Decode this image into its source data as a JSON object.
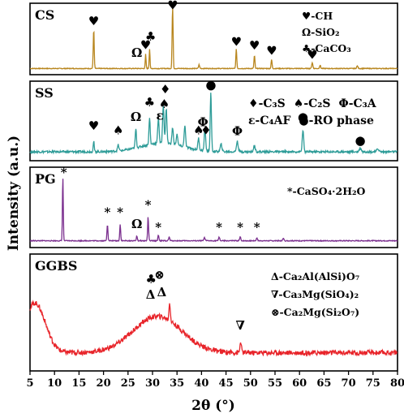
{
  "chart_data": {
    "type": "line",
    "xlabel": "2θ (°)",
    "ylabel": "Intensity (a.u.)",
    "xlim": [
      5,
      80
    ],
    "xticks": [
      5,
      10,
      15,
      20,
      25,
      30,
      35,
      40,
      45,
      50,
      55,
      60,
      65,
      70,
      75,
      80
    ],
    "panels": [
      {
        "name": "CS",
        "color": "#B8861E",
        "baseline": 0.07,
        "noise": 0.012,
        "background": [],
        "peaks": [
          {
            "x": 18.0,
            "y": 0.6,
            "w": 0.14
          },
          {
            "x": 28.6,
            "y": 0.22,
            "w": 0.12
          },
          {
            "x": 29.4,
            "y": 0.3,
            "w": 0.12
          },
          {
            "x": 34.1,
            "y": 0.95,
            "w": 0.14
          },
          {
            "x": 39.5,
            "y": 0.06,
            "w": 0.15
          },
          {
            "x": 47.1,
            "y": 0.3,
            "w": 0.14
          },
          {
            "x": 50.8,
            "y": 0.2,
            "w": 0.14
          },
          {
            "x": 54.3,
            "y": 0.14,
            "w": 0.14
          },
          {
            "x": 62.6,
            "y": 0.09,
            "w": 0.16
          },
          {
            "x": 64.2,
            "y": 0.05,
            "w": 0.16
          },
          {
            "x": 71.8,
            "y": 0.04,
            "w": 0.18
          }
        ],
        "markers": [
          {
            "x": 18.0,
            "y": 0.74,
            "s": "♥"
          },
          {
            "x": 26.8,
            "y": 0.25,
            "s": "Ω"
          },
          {
            "x": 28.6,
            "y": 0.37,
            "s": "♥"
          },
          {
            "x": 29.6,
            "y": 0.5,
            "s": "♣"
          },
          {
            "x": 34.1,
            "y": 0.98,
            "s": "♥"
          },
          {
            "x": 47.1,
            "y": 0.42,
            "s": "♥"
          },
          {
            "x": 50.8,
            "y": 0.36,
            "s": "♥"
          },
          {
            "x": 54.3,
            "y": 0.28,
            "s": "♥"
          },
          {
            "x": 62.6,
            "y": 0.22,
            "s": "♥"
          }
        ],
        "legend": [
          {
            "s": "♥",
            "text": "-CH"
          },
          {
            "s": "",
            "text": "Ω-SiO₂"
          },
          {
            "s": "♣",
            "text": "-CaCO₃"
          }
        ]
      },
      {
        "name": "SS",
        "color": "#2E9C98",
        "baseline": 0.1,
        "noise": 0.03,
        "background": [
          {
            "x": 32,
            "y": 0.12,
            "w": 6
          }
        ],
        "peaks": [
          {
            "x": 18.0,
            "y": 0.14,
            "w": 0.15
          },
          {
            "x": 23.0,
            "y": 0.08,
            "w": 0.2
          },
          {
            "x": 26.6,
            "y": 0.26,
            "w": 0.18
          },
          {
            "x": 29.4,
            "y": 0.36,
            "w": 0.18
          },
          {
            "x": 31.2,
            "y": 0.34,
            "w": 0.2
          },
          {
            "x": 32.2,
            "y": 0.52,
            "w": 0.2
          },
          {
            "x": 32.8,
            "y": 0.48,
            "w": 0.2
          },
          {
            "x": 34.1,
            "y": 0.22,
            "w": 0.2
          },
          {
            "x": 35.0,
            "y": 0.15,
            "w": 0.2
          },
          {
            "x": 36.6,
            "y": 0.3,
            "w": 0.2
          },
          {
            "x": 39.4,
            "y": 0.16,
            "w": 0.2
          },
          {
            "x": 40.7,
            "y": 0.3,
            "w": 0.2
          },
          {
            "x": 41.9,
            "y": 0.8,
            "w": 0.18
          },
          {
            "x": 44.0,
            "y": 0.1,
            "w": 0.25
          },
          {
            "x": 47.3,
            "y": 0.14,
            "w": 0.25
          },
          {
            "x": 50.8,
            "y": 0.08,
            "w": 0.25
          },
          {
            "x": 60.7,
            "y": 0.3,
            "w": 0.2
          },
          {
            "x": 72.4,
            "y": 0.05,
            "w": 0.3
          },
          {
            "x": 76.0,
            "y": 0.04,
            "w": 0.3
          }
        ],
        "markers": [
          {
            "x": 18.0,
            "y": 0.4,
            "s": "♥"
          },
          {
            "x": 23.0,
            "y": 0.34,
            "s": "♠"
          },
          {
            "x": 26.6,
            "y": 0.52,
            "s": "Ω"
          },
          {
            "x": 29.4,
            "y": 0.72,
            "s": "♣"
          },
          {
            "x": 31.5,
            "y": 0.54,
            "s": "ε"
          },
          {
            "x": 32.4,
            "y": 0.7,
            "s": "♠"
          },
          {
            "x": 32.6,
            "y": 0.9,
            "s": "♦"
          },
          {
            "x": 39.4,
            "y": 0.34,
            "s": "♠"
          },
          {
            "x": 40.3,
            "y": 0.45,
            "s": "Φ"
          },
          {
            "x": 40.9,
            "y": 0.34,
            "s": "♦"
          },
          {
            "x": 41.9,
            "y": 0.96,
            "s": "●"
          },
          {
            "x": 47.3,
            "y": 0.33,
            "s": "Φ"
          },
          {
            "x": 60.7,
            "y": 0.52,
            "s": "●"
          },
          {
            "x": 72.4,
            "y": 0.2,
            "s": "●"
          }
        ],
        "legend": [
          {
            "s": "♦",
            "text": "-C₃S"
          },
          {
            "s": "♠",
            "text": "-C₂S"
          },
          {
            "s": "",
            "text": "Φ-C₃A"
          },
          {
            "s": "",
            "text": "ε-C₄AF"
          },
          {
            "s": "●",
            "text": "-RO phase"
          }
        ]
      },
      {
        "name": "PG",
        "color": "#7A2E8E",
        "baseline": 0.07,
        "noise": 0.012,
        "background": [],
        "peaks": [
          {
            "x": 11.7,
            "y": 0.86,
            "w": 0.12
          },
          {
            "x": 20.8,
            "y": 0.22,
            "w": 0.14
          },
          {
            "x": 23.4,
            "y": 0.22,
            "w": 0.14
          },
          {
            "x": 26.8,
            "y": 0.06,
            "w": 0.15
          },
          {
            "x": 29.1,
            "y": 0.32,
            "w": 0.14
          },
          {
            "x": 31.2,
            "y": 0.08,
            "w": 0.14
          },
          {
            "x": 33.4,
            "y": 0.05,
            "w": 0.16
          },
          {
            "x": 40.6,
            "y": 0.04,
            "w": 0.18
          },
          {
            "x": 43.6,
            "y": 0.05,
            "w": 0.16
          },
          {
            "x": 47.9,
            "y": 0.05,
            "w": 0.16
          },
          {
            "x": 51.3,
            "y": 0.04,
            "w": 0.16
          },
          {
            "x": 56.7,
            "y": 0.03,
            "w": 0.2
          }
        ],
        "markers": [
          {
            "x": 11.9,
            "y": 0.94,
            "s": "*"
          },
          {
            "x": 20.8,
            "y": 0.4,
            "s": "*"
          },
          {
            "x": 23.4,
            "y": 0.4,
            "s": "*"
          },
          {
            "x": 26.8,
            "y": 0.24,
            "s": "Ω"
          },
          {
            "x": 29.1,
            "y": 0.5,
            "s": "*"
          },
          {
            "x": 31.2,
            "y": 0.2,
            "s": "*"
          },
          {
            "x": 43.6,
            "y": 0.2,
            "s": "*"
          },
          {
            "x": 47.9,
            "y": 0.2,
            "s": "*"
          },
          {
            "x": 51.3,
            "y": 0.2,
            "s": "*"
          }
        ],
        "legend": [
          {
            "s": "*",
            "text": "-CaSO₄·2H₂O"
          }
        ]
      },
      {
        "name": "GGBS",
        "color": "#E8242A",
        "baseline": 0.15,
        "noise": 0.045,
        "background": [
          {
            "x": 6,
            "y": 0.45,
            "w": 3
          },
          {
            "x": 31,
            "y": 0.33,
            "w": 7
          }
        ],
        "peaks": [
          {
            "x": 33.5,
            "y": 0.16,
            "w": 0.2
          },
          {
            "x": 48.0,
            "y": 0.1,
            "w": 0.2
          }
        ],
        "markers": [
          {
            "x": 29.7,
            "y": 0.78,
            "s": "♣"
          },
          {
            "x": 31.4,
            "y": 0.82,
            "s": "⊗"
          },
          {
            "x": 29.6,
            "y": 0.64,
            "s": "Δ"
          },
          {
            "x": 31.9,
            "y": 0.66,
            "s": "Δ"
          },
          {
            "x": 47.9,
            "y": 0.36,
            "s": "∇"
          }
        ],
        "legend": [
          {
            "s": "",
            "text": "Δ-Ca₂Al(AlSi)O₇"
          },
          {
            "s": "",
            "text": "∇-Ca₃Mg(SiO₄)₂"
          },
          {
            "s": "",
            "text": "⊗-Ca₂Mg(Si₂O₇)"
          }
        ]
      }
    ]
  }
}
